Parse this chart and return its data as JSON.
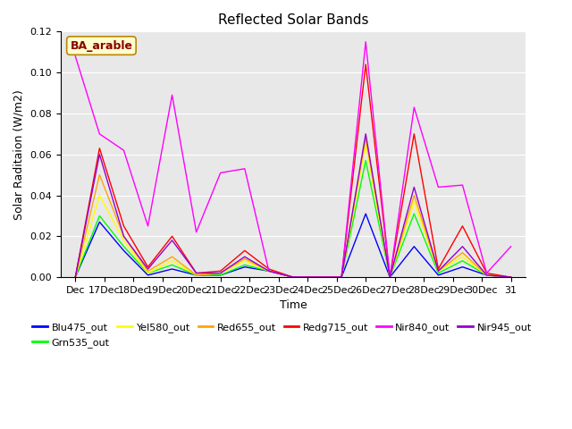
{
  "title": "Reflected Solar Bands",
  "ylabel": "Solar Raditaion (W/m2)",
  "xlabel": "Time",
  "annotation": "BA_arable",
  "ylim": [
    0,
    0.12
  ],
  "background_color": "#e8e8e8",
  "series_order": [
    "Blu475_out",
    "Grn535_out",
    "Yel580_out",
    "Red655_out",
    "Redg715_out",
    "Nir840_out",
    "Nir945_out"
  ],
  "series": {
    "Blu475_out": {
      "color": "#0000ff",
      "values": [
        0.0,
        0.027,
        0.013,
        0.001,
        0.004,
        0.001,
        0.001,
        0.005,
        0.003,
        0.0,
        0.0,
        0.0,
        0.031,
        0.0,
        0.015,
        0.001,
        0.005,
        0.001,
        0.0
      ]
    },
    "Grn535_out": {
      "color": "#00ff00",
      "values": [
        0.0,
        0.03,
        0.015,
        0.002,
        0.006,
        0.001,
        0.001,
        0.006,
        0.003,
        0.0,
        0.0,
        0.0,
        0.057,
        0.0,
        0.031,
        0.002,
        0.008,
        0.001,
        0.0
      ]
    },
    "Yel580_out": {
      "color": "#ffff00",
      "values": [
        0.0,
        0.04,
        0.018,
        0.002,
        0.008,
        0.001,
        0.002,
        0.008,
        0.003,
        0.0,
        0.0,
        0.0,
        0.065,
        0.0,
        0.037,
        0.003,
        0.01,
        0.001,
        0.0
      ]
    },
    "Red655_out": {
      "color": "#ffa500",
      "values": [
        0.0,
        0.05,
        0.02,
        0.003,
        0.01,
        0.001,
        0.002,
        0.009,
        0.003,
        0.0,
        0.0,
        0.0,
        0.068,
        0.0,
        0.04,
        0.003,
        0.012,
        0.001,
        0.0
      ]
    },
    "Redg715_out": {
      "color": "#ff0000",
      "values": [
        0.0,
        0.063,
        0.025,
        0.005,
        0.02,
        0.002,
        0.003,
        0.013,
        0.004,
        0.0,
        0.0,
        0.0,
        0.104,
        0.0,
        0.07,
        0.004,
        0.025,
        0.002,
        0.0
      ]
    },
    "Nir840_out": {
      "color": "#ff00ff",
      "values": [
        0.108,
        0.07,
        0.062,
        0.025,
        0.089,
        0.022,
        0.051,
        0.053,
        0.003,
        0.0,
        0.0,
        0.0,
        0.115,
        0.0,
        0.083,
        0.044,
        0.045,
        0.002,
        0.015
      ]
    },
    "Nir945_out": {
      "color": "#9400d3",
      "values": [
        0.0,
        0.06,
        0.02,
        0.004,
        0.018,
        0.002,
        0.002,
        0.01,
        0.003,
        0.0,
        0.0,
        0.0,
        0.07,
        0.0,
        0.044,
        0.003,
        0.015,
        0.001,
        0.0
      ]
    }
  },
  "xtick_positions": [
    0,
    1,
    2,
    3,
    4,
    5,
    6,
    7,
    8,
    9,
    10,
    11,
    12,
    13,
    14,
    15
  ],
  "xtick_labels": [
    "Dec",
    "17Dec",
    "18Dec",
    "19Dec",
    "20Dec",
    "21Dec",
    "22Dec",
    "23Dec",
    "24Dec",
    "25Dec",
    "26Dec",
    "27Dec",
    "28Dec",
    "29Dec",
    "30Dec",
    "31"
  ],
  "legend_order": [
    "Blu475_out",
    "Grn535_out",
    "Yel580_out",
    "Red655_out",
    "Redg715_out",
    "Nir840_out",
    "Nir945_out"
  ]
}
